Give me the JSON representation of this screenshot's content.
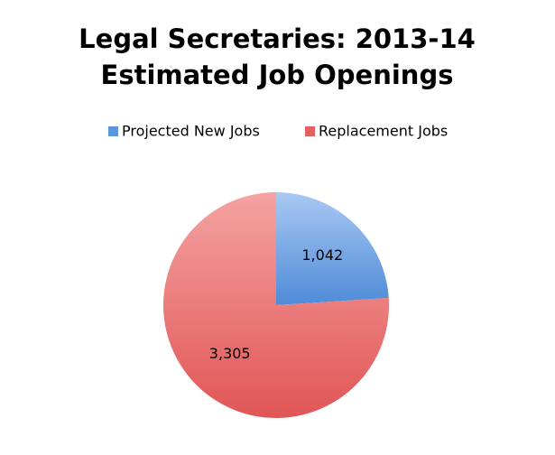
{
  "chart_data": {
    "type": "pie",
    "title": [
      "Legal Secretaries: 2013-14",
      "Estimated Job Openings"
    ],
    "categories": [
      "Projected New Jobs",
      "Replacement Jobs"
    ],
    "values": [
      1042,
      3305
    ],
    "value_labels": [
      "1,042",
      "3,305"
    ],
    "colors": [
      "#5b97df",
      "#e5605f"
    ],
    "legend": "top"
  }
}
